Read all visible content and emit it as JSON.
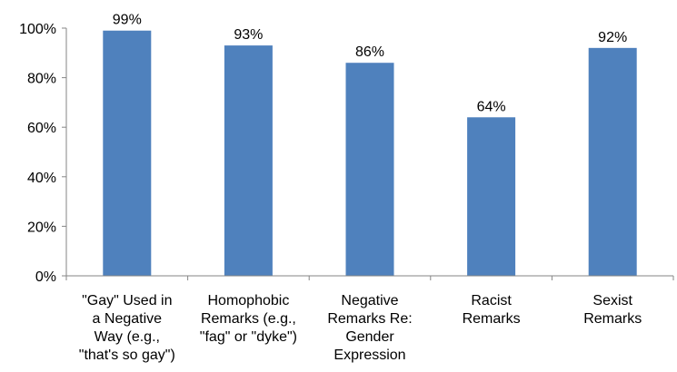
{
  "chart_data": {
    "type": "bar",
    "categories": [
      [
        "\"Gay\" Used in",
        "a Negative",
        "Way (e.g.,",
        "\"that's so gay\")"
      ],
      [
        "Homophobic",
        "Remarks (e.g.,",
        "\"fag\" or \"dyke\")"
      ],
      [
        "Negative",
        "Remarks Re:",
        "Gender",
        "Expression"
      ],
      [
        "Racist",
        "Remarks"
      ],
      [
        "Sexist",
        "Remarks"
      ]
    ],
    "values": [
      99,
      93,
      86,
      64,
      92
    ],
    "data_labels": [
      "99%",
      "93%",
      "86%",
      "64%",
      "92%"
    ],
    "yticks": [
      "0%",
      "20%",
      "40%",
      "60%",
      "80%",
      "100%"
    ],
    "ylim": [
      0,
      100
    ],
    "bar_color": "#4f81bd",
    "axis_color": "#868686",
    "grid": false,
    "legend": false
  }
}
